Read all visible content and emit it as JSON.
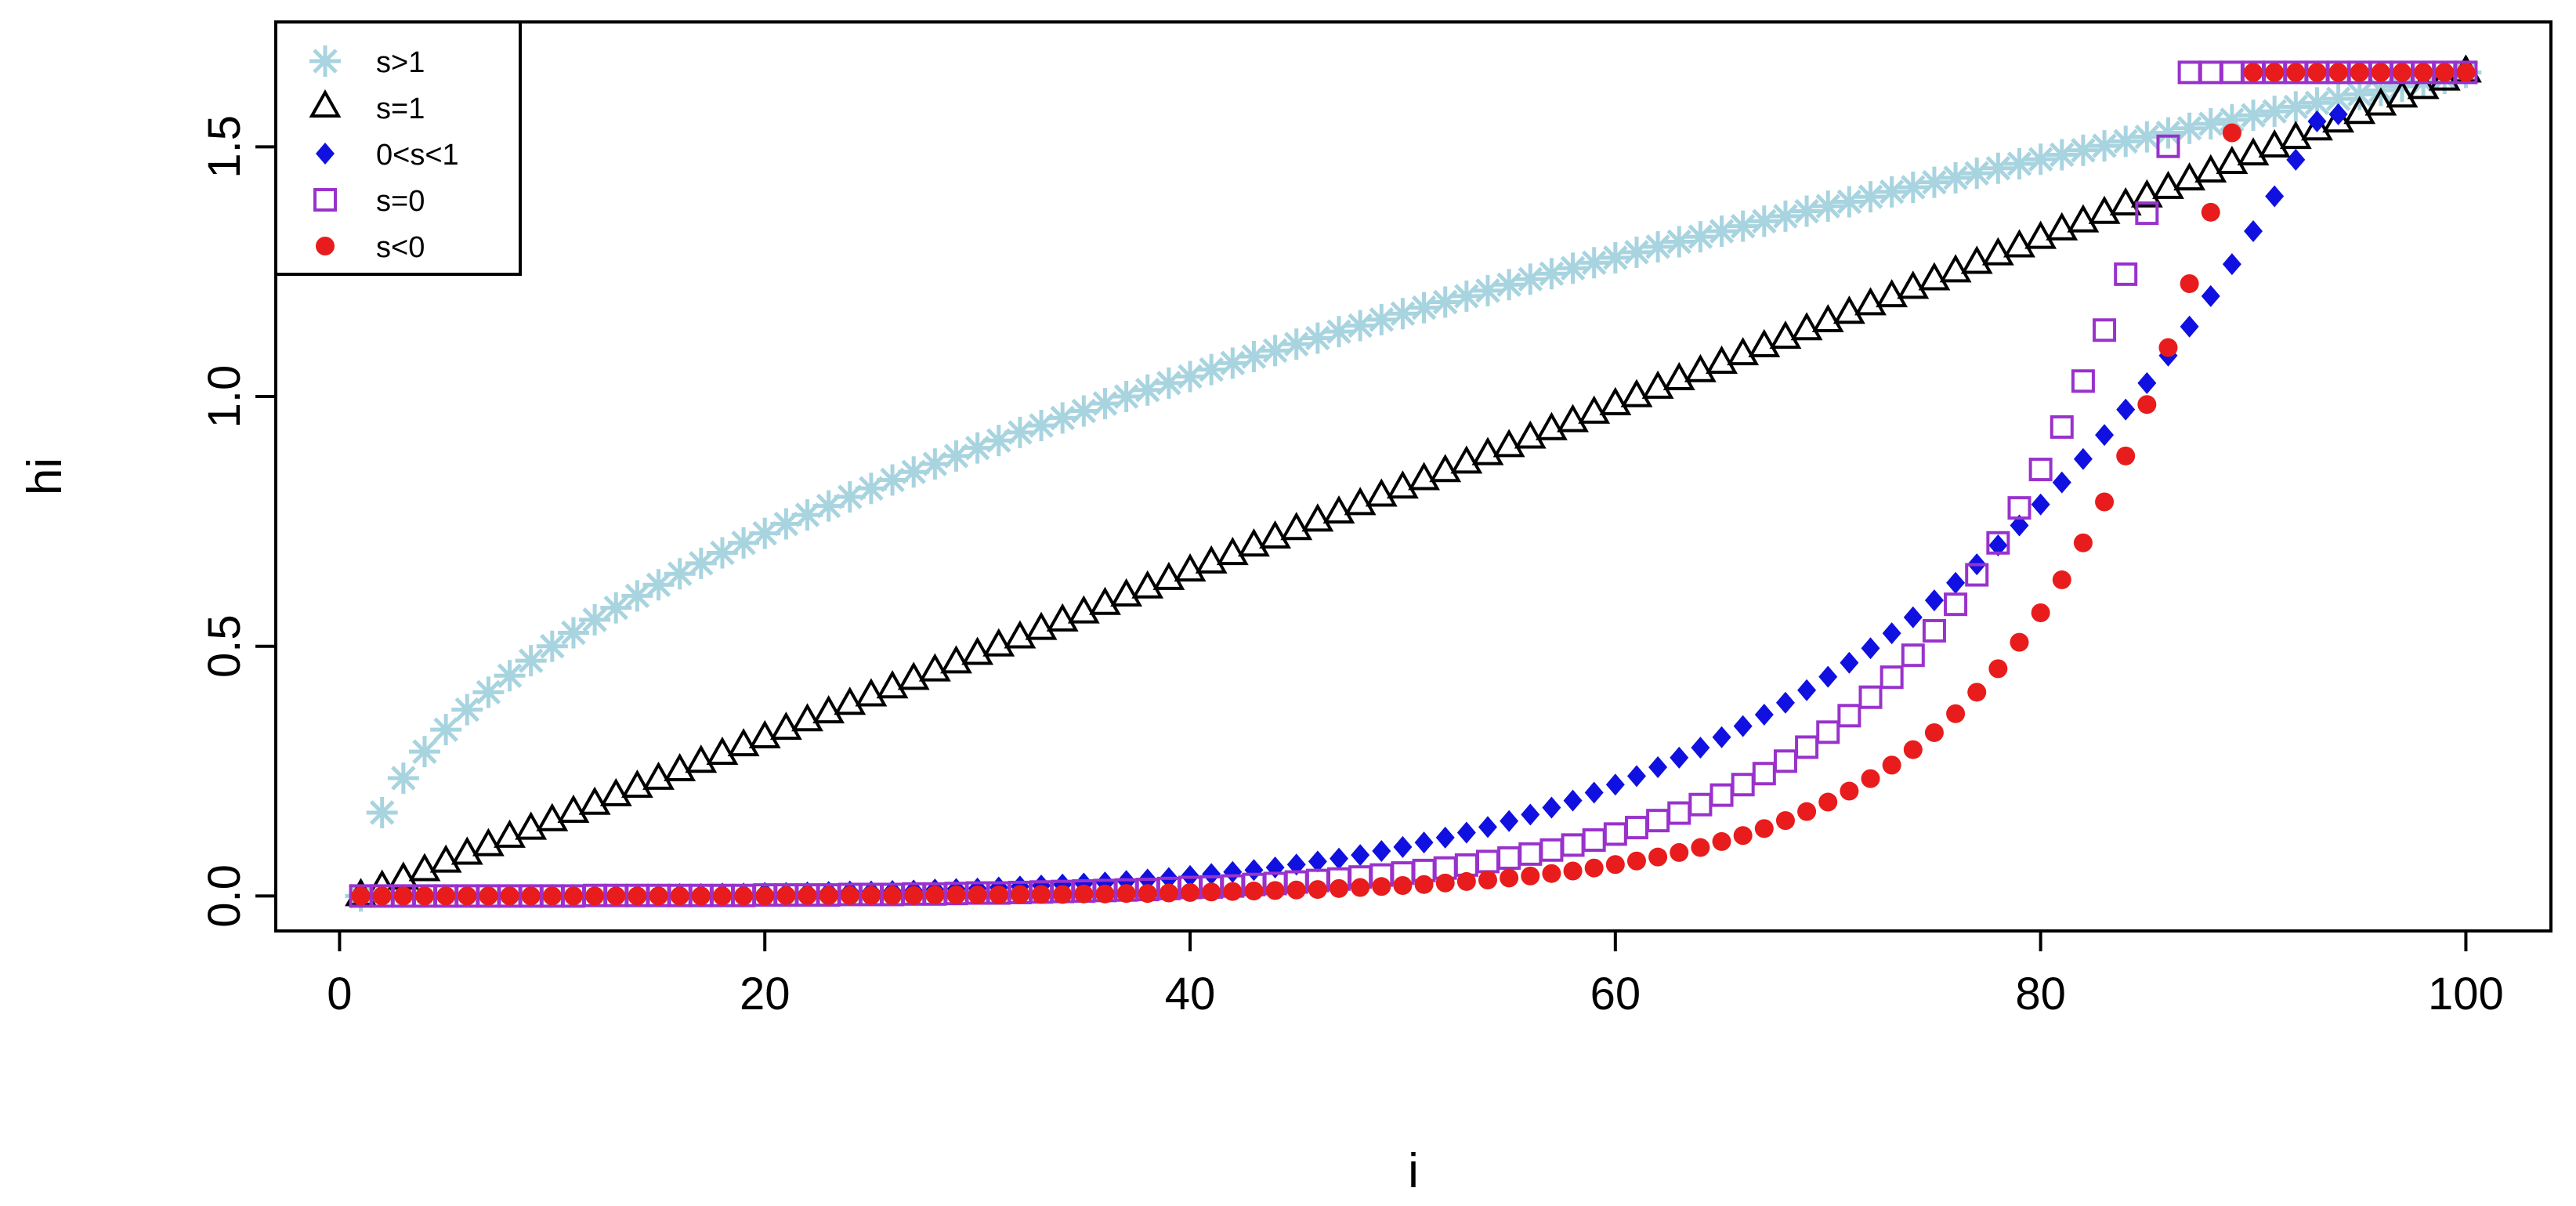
{
  "chart_data": {
    "type": "scatter",
    "title": "",
    "xlabel": "i",
    "ylabel": "hi",
    "xlim": [
      -3,
      104
    ],
    "ylim": [
      -0.07,
      1.75
    ],
    "x_ticks": [
      0,
      20,
      40,
      60,
      80,
      100
    ],
    "y_ticks": [
      0.0,
      0.5,
      1.0,
      1.5
    ],
    "x_tick_labels": [
      "0",
      "20",
      "40",
      "60",
      "80",
      "100"
    ],
    "y_tick_labels": [
      "0.0",
      "0.5",
      "1.0",
      "1.5"
    ],
    "grid": false,
    "legend_position": "top-left",
    "x": [
      1,
      2,
      3,
      4,
      5,
      6,
      7,
      8,
      9,
      10,
      11,
      12,
      13,
      14,
      15,
      16,
      17,
      18,
      19,
      20,
      21,
      22,
      23,
      24,
      25,
      26,
      27,
      28,
      29,
      30,
      31,
      32,
      33,
      34,
      35,
      36,
      37,
      38,
      39,
      40,
      41,
      42,
      43,
      44,
      45,
      46,
      47,
      48,
      49,
      50,
      51,
      52,
      53,
      54,
      55,
      56,
      57,
      58,
      59,
      60,
      61,
      62,
      63,
      64,
      65,
      66,
      67,
      68,
      69,
      70,
      71,
      72,
      73,
      74,
      75,
      76,
      77,
      78,
      79,
      80,
      81,
      82,
      83,
      84,
      85,
      86,
      87,
      88,
      89,
      90,
      91,
      92,
      93,
      94,
      95,
      96,
      97,
      98,
      99,
      100
    ],
    "series": [
      {
        "name": "s>1",
        "marker": "asterisk",
        "color": "#a8d4e0",
        "values": [
          0.0,
          0.167,
          0.236,
          0.289,
          0.333,
          0.373,
          0.408,
          0.441,
          0.471,
          0.5,
          0.527,
          0.553,
          0.577,
          0.601,
          0.623,
          0.645,
          0.666,
          0.687,
          0.707,
          0.726,
          0.745,
          0.763,
          0.781,
          0.799,
          0.816,
          0.833,
          0.849,
          0.865,
          0.881,
          0.897,
          0.912,
          0.928,
          0.942,
          0.957,
          0.971,
          0.986,
          1.0,
          1.013,
          1.027,
          1.04,
          1.054,
          1.067,
          1.08,
          1.092,
          1.105,
          1.117,
          1.13,
          1.142,
          1.154,
          1.166,
          1.178,
          1.189,
          1.201,
          1.212,
          1.224,
          1.235,
          1.246,
          1.257,
          1.268,
          1.278,
          1.289,
          1.3,
          1.31,
          1.32,
          1.331,
          1.341,
          1.351,
          1.361,
          1.371,
          1.381,
          1.39,
          1.4,
          1.41,
          1.419,
          1.429,
          1.438,
          1.447,
          1.457,
          1.466,
          1.475,
          1.484,
          1.493,
          1.502,
          1.511,
          1.52,
          1.528,
          1.537,
          1.546,
          1.554,
          1.563,
          1.571,
          1.58,
          1.588,
          1.596,
          1.605,
          1.613,
          1.621,
          1.629,
          1.637,
          1.649
        ]
      },
      {
        "name": "s=1",
        "marker": "triangle-open",
        "color": "#000000",
        "values": [
          0.0,
          0.017,
          0.033,
          0.05,
          0.067,
          0.083,
          0.1,
          0.117,
          0.133,
          0.15,
          0.167,
          0.183,
          0.2,
          0.217,
          0.233,
          0.25,
          0.267,
          0.283,
          0.3,
          0.316,
          0.333,
          0.35,
          0.366,
          0.383,
          0.4,
          0.416,
          0.433,
          0.45,
          0.466,
          0.483,
          0.5,
          0.516,
          0.533,
          0.55,
          0.566,
          0.583,
          0.6,
          0.616,
          0.633,
          0.65,
          0.666,
          0.683,
          0.7,
          0.716,
          0.733,
          0.75,
          0.766,
          0.783,
          0.8,
          0.816,
          0.833,
          0.849,
          0.866,
          0.883,
          0.899,
          0.916,
          0.933,
          0.949,
          0.966,
          0.983,
          0.999,
          1.016,
          1.033,
          1.049,
          1.066,
          1.083,
          1.099,
          1.116,
          1.133,
          1.149,
          1.166,
          1.183,
          1.199,
          1.216,
          1.233,
          1.249,
          1.266,
          1.283,
          1.299,
          1.316,
          1.333,
          1.349,
          1.366,
          1.383,
          1.399,
          1.416,
          1.433,
          1.449,
          1.466,
          1.483,
          1.499,
          1.516,
          1.533,
          1.549,
          1.566,
          1.583,
          1.599,
          1.616,
          1.633,
          1.649
        ]
      },
      {
        "name": "0<s<1",
        "marker": "diamond",
        "color": "#1010e0",
        "values": [
          0.0,
          0.0,
          0.001,
          0.001,
          0.001,
          0.001,
          0.001,
          0.001,
          0.002,
          0.002,
          0.002,
          0.002,
          0.003,
          0.003,
          0.003,
          0.004,
          0.004,
          0.005,
          0.005,
          0.006,
          0.006,
          0.007,
          0.008,
          0.009,
          0.009,
          0.01,
          0.011,
          0.013,
          0.014,
          0.015,
          0.017,
          0.019,
          0.021,
          0.023,
          0.025,
          0.027,
          0.03,
          0.033,
          0.036,
          0.04,
          0.044,
          0.048,
          0.052,
          0.057,
          0.063,
          0.069,
          0.075,
          0.082,
          0.09,
          0.098,
          0.107,
          0.117,
          0.127,
          0.138,
          0.15,
          0.163,
          0.177,
          0.191,
          0.207,
          0.223,
          0.24,
          0.258,
          0.277,
          0.297,
          0.318,
          0.34,
          0.363,
          0.387,
          0.412,
          0.439,
          0.467,
          0.496,
          0.526,
          0.558,
          0.592,
          0.627,
          0.664,
          0.702,
          0.742,
          0.784,
          0.828,
          0.875,
          0.923,
          0.974,
          1.027,
          1.082,
          1.14,
          1.201,
          1.265,
          1.331,
          1.401,
          1.474,
          1.551,
          1.565,
          1.649,
          1.649,
          1.649,
          1.649,
          1.649,
          1.649
        ]
      },
      {
        "name": "s=0",
        "marker": "square-open",
        "color": "#9932cc",
        "values": [
          0.0,
          0.0,
          0.0,
          0.0,
          0.0,
          0.0,
          0.0,
          0.0,
          0.0,
          0.0,
          0.0,
          0.001,
          0.001,
          0.001,
          0.001,
          0.001,
          0.001,
          0.001,
          0.001,
          0.002,
          0.002,
          0.002,
          0.002,
          0.003,
          0.003,
          0.003,
          0.004,
          0.004,
          0.005,
          0.006,
          0.006,
          0.007,
          0.008,
          0.009,
          0.01,
          0.011,
          0.012,
          0.013,
          0.015,
          0.017,
          0.018,
          0.02,
          0.023,
          0.025,
          0.028,
          0.031,
          0.034,
          0.038,
          0.042,
          0.046,
          0.051,
          0.056,
          0.062,
          0.069,
          0.076,
          0.084,
          0.092,
          0.102,
          0.112,
          0.124,
          0.137,
          0.151,
          0.166,
          0.183,
          0.202,
          0.223,
          0.245,
          0.27,
          0.298,
          0.328,
          0.361,
          0.398,
          0.438,
          0.482,
          0.531,
          0.584,
          0.643,
          0.707,
          0.777,
          0.854,
          0.939,
          1.031,
          1.133,
          1.245,
          1.367,
          1.501,
          1.649,
          1.649,
          1.649,
          1.649,
          1.649,
          1.649,
          1.649,
          1.649,
          1.649,
          1.649,
          1.649,
          1.649,
          1.649,
          1.649
        ]
      },
      {
        "name": "s<0",
        "marker": "circle-filled",
        "color": "#e81c1c",
        "values": [
          0.0,
          0.0,
          0.0,
          0.0,
          0.0,
          0.0,
          0.0,
          0.0,
          0.0,
          0.0,
          0.0,
          0.0,
          0.0,
          0.0,
          0.0,
          0.0,
          0.0,
          0.0,
          0.0,
          0.0,
          0.001,
          0.001,
          0.001,
          0.001,
          0.001,
          0.001,
          0.001,
          0.002,
          0.002,
          0.002,
          0.002,
          0.003,
          0.003,
          0.003,
          0.004,
          0.004,
          0.005,
          0.005,
          0.006,
          0.007,
          0.008,
          0.009,
          0.01,
          0.011,
          0.012,
          0.013,
          0.015,
          0.017,
          0.019,
          0.021,
          0.023,
          0.026,
          0.029,
          0.032,
          0.036,
          0.04,
          0.045,
          0.05,
          0.056,
          0.063,
          0.07,
          0.078,
          0.087,
          0.097,
          0.109,
          0.121,
          0.135,
          0.151,
          0.169,
          0.188,
          0.21,
          0.235,
          0.262,
          0.293,
          0.327,
          0.365,
          0.408,
          0.455,
          0.508,
          0.567,
          0.633,
          0.707,
          0.789,
          0.881,
          0.984,
          1.098,
          1.226,
          1.369,
          1.528,
          1.649,
          1.649,
          1.649,
          1.649,
          1.649,
          1.649,
          1.649,
          1.649,
          1.649,
          1.649,
          1.649
        ]
      }
    ]
  }
}
